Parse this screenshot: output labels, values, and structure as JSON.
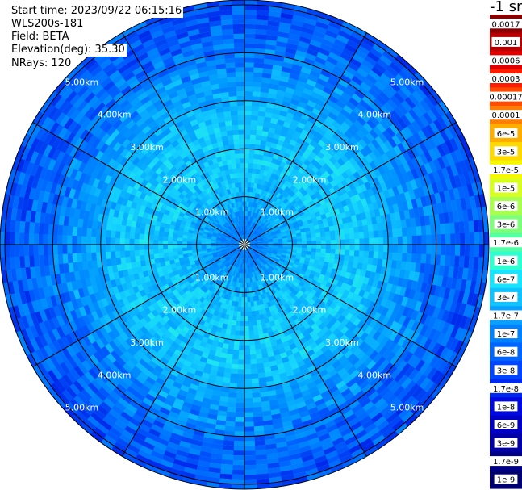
{
  "header": {
    "start_time": "Start time: 2023/09/22 06:15:16",
    "instrument": "WLS200s-181",
    "field": "Field: BETA",
    "elevation": "Elevation(deg): 35.30",
    "nrays": "NRays: 120"
  },
  "colorbar": {
    "unit_label": "-1 sr",
    "labels": [
      "0.0017",
      "0.001",
      "0.0006",
      "0.0003",
      "0.00017",
      "0.0001",
      "6e-5",
      "3e-5",
      "1.7e-5",
      "1e-5",
      "6e-6",
      "3e-6",
      "1.7e-6",
      "1e-6",
      "6e-7",
      "3e-7",
      "1.7e-7",
      "1e-7",
      "6e-8",
      "3e-8",
      "1.7e-8",
      "1e-8",
      "6e-9",
      "3e-9",
      "1.7e-9",
      "1e-9"
    ],
    "colors": [
      "#8b0000",
      "#b80000",
      "#e00000",
      "#ff1a00",
      "#ff4a00",
      "#ff7d00",
      "#ffae00",
      "#ffd800",
      "#f7f700",
      "#d6ff21",
      "#a8ff50",
      "#7dff7b",
      "#55ffa6",
      "#2effd0",
      "#18e4ff",
      "#10c2ff",
      "#0aa0ff",
      "#0082ff",
      "#0064ff",
      "#0046ff",
      "#0028f5",
      "#000ae0",
      "#0000c4",
      "#0000a6",
      "#00008a",
      "#000070"
    ]
  },
  "chart_data": {
    "type": "heatmap",
    "subtype": "polar ppi",
    "field": "BETA",
    "elevation_deg": 35.3,
    "n_rays": 120,
    "range_unit": "km",
    "range_rings_km": [
      1,
      2,
      3,
      4,
      5
    ],
    "range_ring_labels": [
      "1.00km",
      "2.00km",
      "3.00km",
      "4.00km",
      "5.00km"
    ],
    "max_range_km": 5.1,
    "spokes_deg": [
      0,
      30,
      60,
      90,
      120,
      150,
      180,
      210,
      240,
      270,
      300,
      330
    ],
    "value_profile": [
      {
        "range_km": 0.25,
        "beta": 1e-07
      },
      {
        "range_km": 0.75,
        "beta": 3e-07
      },
      {
        "range_km": 1.5,
        "beta": 6e-07
      },
      {
        "range_km": 2.5,
        "beta": 6e-07
      },
      {
        "range_km": 3.2,
        "beta": 3e-07
      },
      {
        "range_km": 3.8,
        "beta": 1.2e-07
      },
      {
        "range_km": 4.4,
        "beta": 6e-08
      },
      {
        "range_km": 4.9,
        "beta": 4e-08
      }
    ]
  }
}
